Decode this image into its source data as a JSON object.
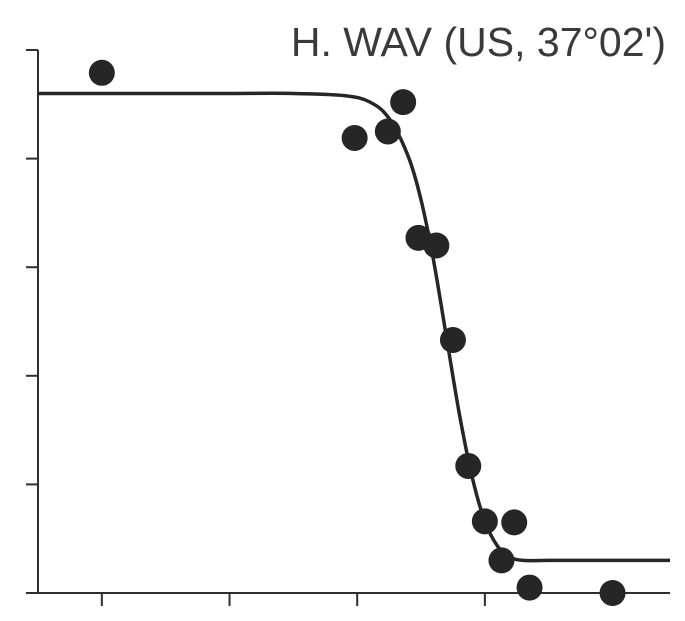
{
  "chart_data": {
    "type": "scatter",
    "title": "H. WAV (US, 37°02')",
    "xlabel": "",
    "ylabel": "",
    "x_ticks": [
      1,
      2,
      3,
      4,
      5
    ],
    "y_ticks": [
      0,
      1,
      2,
      3,
      4,
      5
    ],
    "x_tick_labels_shown": false,
    "y_tick_labels_shown": false,
    "xlim": [
      0.5,
      5.45
    ],
    "ylim": [
      0,
      5
    ],
    "grid": false,
    "legend": "none",
    "series": [
      {
        "kind": "points",
        "x": [
          1.0,
          2.98,
          3.24,
          3.36,
          3.48,
          3.62,
          3.75,
          3.87,
          4.0,
          4.13,
          4.23,
          4.35,
          5.0
        ],
        "y": [
          4.79,
          4.19,
          4.25,
          4.52,
          3.27,
          3.2,
          2.33,
          1.17,
          0.66,
          0.3,
          0.65,
          0.05,
          0.0
        ]
      },
      {
        "kind": "fitted-curve",
        "x": [
          0.5,
          1.0,
          1.5,
          2.0,
          2.5,
          2.9,
          3.1,
          3.25,
          3.4,
          3.5,
          3.6,
          3.7,
          3.8,
          3.9,
          4.0,
          4.1,
          4.2,
          4.3,
          4.5,
          5.0,
          5.45
        ],
        "y": [
          4.6,
          4.6,
          4.6,
          4.6,
          4.6,
          4.58,
          4.52,
          4.37,
          4.02,
          3.62,
          3.05,
          2.35,
          1.65,
          1.07,
          0.66,
          0.43,
          0.33,
          0.3,
          0.3,
          0.3,
          0.3
        ]
      }
    ]
  }
}
